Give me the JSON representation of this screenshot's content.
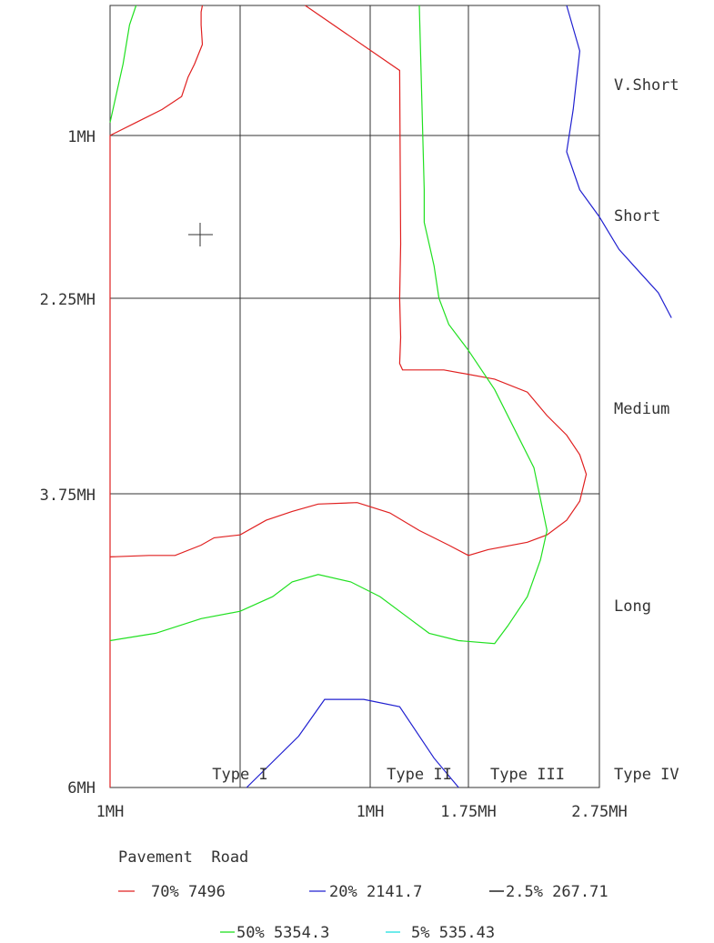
{
  "chart_data": {
    "type": "contour",
    "title": "",
    "x_ticks": [
      "1MH",
      "1MH",
      "1.75MH",
      "2.75MH"
    ],
    "y_ticks": [
      "1MH",
      "2.25MH",
      "3.75MH",
      "6MH"
    ],
    "x_zone_labels": [
      "Type I",
      "Type II",
      "Type III",
      "Type IV"
    ],
    "y_zone_labels": [
      "V.Short",
      "Short",
      "Medium",
      "Long"
    ],
    "legend_title": "Pavement  Road",
    "legend": [
      {
        "label": "70% 7496",
        "color": "#e02020"
      },
      {
        "label": "20% 2141.7",
        "color": "#2020d0"
      },
      {
        "label": "2.5% 267.71",
        "color": "#000000"
      },
      {
        "label": "50% 5354.3",
        "color": "#20e020"
      },
      {
        "label": "5% 535.43",
        "color": "#20e0e0"
      }
    ],
    "series": [
      {
        "name": "70% 7496",
        "color": "#e02020",
        "segments": [
          [
            [
              0,
              6
            ],
            [
              0,
              1
            ],
            [
              0.2,
              0.9
            ],
            [
              0.4,
              0.8
            ],
            [
              0.55,
              0.7
            ],
            [
              0.6,
              0.55
            ],
            [
              0.65,
              0.45
            ],
            [
              0.71,
              0.3
            ],
            [
              0.7,
              0.15
            ],
            [
              0.7,
              0.05
            ],
            [
              0.71,
              0.0
            ]
          ],
          [
            [
              0,
              4.43
            ],
            [
              0.3,
              4.42
            ],
            [
              0.5,
              4.42
            ],
            [
              0.7,
              4.35
            ],
            [
              0.8,
              4.3
            ],
            [
              1,
              4.28
            ],
            [
              1.2,
              4.18
            ],
            [
              1.4,
              4.12
            ],
            [
              1.6,
              4.07
            ],
            [
              1.9,
              4.06
            ],
            [
              2.2,
              4.13
            ],
            [
              2.5,
              4.25
            ],
            [
              2.8,
              4.35
            ],
            [
              3.0,
              4.42
            ],
            [
              3.15,
              4.38
            ],
            [
              3.45,
              4.33
            ],
            [
              3.6,
              4.28
            ],
            [
              3.75,
              4.18
            ],
            [
              3.85,
              4.05
            ],
            [
              3.9,
              3.85
            ],
            [
              3.85,
              3.7
            ],
            [
              3.75,
              3.55
            ],
            [
              3.6,
              3.4
            ],
            [
              3.45,
              3.22
            ],
            [
              3.2,
              3.12
            ],
            [
              2.75,
              3.05
            ],
            [
              2.33,
              3.05
            ],
            [
              2.3,
              3.0
            ],
            [
              2.31,
              2.8
            ],
            [
              2.3,
              2.5
            ],
            [
              2.31,
              2.0
            ],
            [
              2.3,
              0.5
            ],
            [
              1.5,
              0.0
            ]
          ]
        ]
      },
      {
        "name": "50% 5354.3",
        "color": "#20e020",
        "segments": [
          [
            [
              0,
              5.0
            ],
            [
              0.35,
              4.95
            ],
            [
              0.7,
              4.85
            ],
            [
              1,
              4.8
            ],
            [
              1.25,
              4.7
            ],
            [
              1.4,
              4.6
            ],
            [
              1.6,
              4.55
            ],
            [
              1.85,
              4.6
            ],
            [
              2.1,
              4.7
            ],
            [
              2.4,
              4.85
            ],
            [
              2.6,
              4.95
            ],
            [
              2.9,
              5.0
            ],
            [
              3.2,
              5.02
            ],
            [
              3.3,
              4.9
            ],
            [
              3.45,
              4.7
            ],
            [
              3.55,
              4.45
            ],
            [
              3.6,
              4.25
            ],
            [
              3.5,
              3.8
            ],
            [
              3.4,
              3.6
            ],
            [
              3.2,
              3.2
            ],
            [
              3.0,
              2.9
            ],
            [
              2.8,
              2.7
            ],
            [
              2.7,
              2.5
            ],
            [
              2.65,
              2.2
            ],
            [
              2.6,
              2.0
            ],
            [
              2.55,
              1.8
            ],
            [
              2.55,
              1.5
            ],
            [
              2.5,
              0.0
            ]
          ],
          [
            [
              0,
              0.9
            ],
            [
              0.1,
              0.45
            ],
            [
              0.15,
              0.15
            ],
            [
              0.2,
              0.0
            ]
          ]
        ]
      },
      {
        "name": "20% 2141.7",
        "color": "#2020d0",
        "segments": [
          [
            [
              3.75,
              0.0
            ],
            [
              3.85,
              0.35
            ],
            [
              3.8,
              0.8
            ],
            [
              3.75,
              1.15
            ],
            [
              3.85,
              1.5
            ],
            [
              4.0,
              1.75
            ],
            [
              4.15,
              2.05
            ],
            [
              4.3,
              2.25
            ],
            [
              4.45,
              2.45
            ],
            [
              4.55,
              2.65
            ]
          ],
          [
            [
              1.05,
              6.0
            ],
            [
              1.45,
              5.65
            ],
            [
              1.65,
              5.4
            ],
            [
              1.95,
              5.4
            ],
            [
              2.3,
              5.45
            ],
            [
              2.65,
              5.8
            ],
            [
              2.9,
              6.0
            ]
          ]
        ]
      }
    ]
  }
}
